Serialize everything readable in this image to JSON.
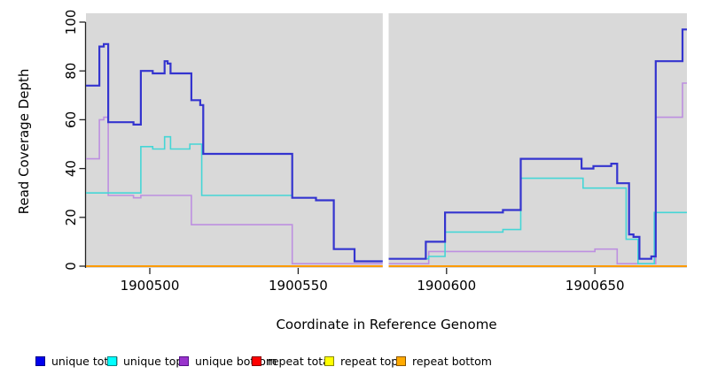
{
  "chart_data": {
    "type": "line",
    "title": "",
    "xlabel": "Coordinate in Reference Genome",
    "ylabel": "Read Coverage Depth",
    "xlim": [
      1900478.5,
      1900681
    ],
    "ylim": [
      0,
      100
    ],
    "x_ticks": [
      1900500,
      1900550,
      1900600,
      1900650
    ],
    "y_ticks": [
      0,
      20,
      40,
      60,
      80,
      100
    ],
    "grid": "off",
    "plot_background": "#d9d9d9",
    "axis_color": "#222222",
    "gap": {
      "x_start": 1900578.5,
      "x_end": 1900580.5,
      "color": "#ffffff"
    },
    "series": [
      {
        "name": "repeat total",
        "color": "#dd0000",
        "width": 1.5,
        "points": [
          [
            1900478.5,
            0
          ]
        ]
      },
      {
        "name": "repeat top",
        "color": "#eeee00",
        "width": 1.5,
        "points": [
          [
            1900478.5,
            0
          ]
        ]
      },
      {
        "name": "repeat bottom",
        "color": "#ff9800",
        "width": 1.8,
        "points": [
          [
            1900478.5,
            0
          ]
        ]
      },
      {
        "name": "unique bottom",
        "color": "#bd8fe0",
        "width": 1.6,
        "points": [
          [
            1900478.5,
            44
          ],
          [
            1900483,
            60
          ],
          [
            1900484.5,
            61
          ],
          [
            1900486,
            29
          ],
          [
            1900494.5,
            28
          ],
          [
            1900497,
            29
          ],
          [
            1900514,
            17
          ],
          [
            1900548,
            1
          ],
          [
            1900594,
            6
          ],
          [
            1900650,
            7
          ],
          [
            1900657.5,
            1
          ],
          [
            1900670.5,
            61
          ],
          [
            1900679.5,
            75
          ]
        ]
      },
      {
        "name": "unique top",
        "color": "#45d6d6",
        "width": 1.6,
        "points": [
          [
            1900478.5,
            30
          ],
          [
            1900497,
            49
          ],
          [
            1900501,
            48
          ],
          [
            1900505,
            53
          ],
          [
            1900507,
            48
          ],
          [
            1900513.5,
            50
          ],
          [
            1900517.5,
            29
          ],
          [
            1900548,
            28
          ],
          [
            1900556,
            27
          ],
          [
            1900562,
            7
          ],
          [
            1900569,
            2
          ],
          [
            1900579.5,
            3
          ],
          [
            1900594,
            4
          ],
          [
            1900599.5,
            14
          ],
          [
            1900619,
            15
          ],
          [
            1900625,
            36
          ],
          [
            1900646,
            32
          ],
          [
            1900660.5,
            11
          ],
          [
            1900664.5,
            1
          ],
          [
            1900670,
            22
          ]
        ]
      },
      {
        "name": "unique total",
        "color": "#3434cf",
        "width": 2.2,
        "points": [
          [
            1900478.5,
            74
          ],
          [
            1900483,
            90
          ],
          [
            1900484.5,
            91
          ],
          [
            1900486,
            59
          ],
          [
            1900494.5,
            58
          ],
          [
            1900497,
            80
          ],
          [
            1900501,
            79
          ],
          [
            1900505,
            84
          ],
          [
            1900506,
            83
          ],
          [
            1900507,
            79
          ],
          [
            1900514,
            68
          ],
          [
            1900517,
            66
          ],
          [
            1900518,
            46
          ],
          [
            1900548,
            28
          ],
          [
            1900556,
            27
          ],
          [
            1900562,
            7
          ],
          [
            1900569,
            2
          ],
          [
            1900579.5,
            3
          ],
          [
            1900593,
            10
          ],
          [
            1900599.5,
            22
          ],
          [
            1900619,
            23
          ],
          [
            1900625,
            44
          ],
          [
            1900645.5,
            40
          ],
          [
            1900649.5,
            41
          ],
          [
            1900655.5,
            42
          ],
          [
            1900657.5,
            34
          ],
          [
            1900661.5,
            13
          ],
          [
            1900663,
            12
          ],
          [
            1900665,
            3
          ],
          [
            1900669,
            4
          ],
          [
            1900670.5,
            84
          ],
          [
            1900679.5,
            97
          ]
        ]
      }
    ],
    "legend": {
      "position": "bottom",
      "items": [
        {
          "label": "unique total",
          "color": "#0000ee",
          "border": "#000088"
        },
        {
          "label": "unique top",
          "color": "#00ffff",
          "border": "#008888"
        },
        {
          "label": "unique bottom",
          "color": "#9933cc",
          "border": "#551188"
        },
        {
          "label": "repeat total",
          "color": "#ff0000",
          "border": "#880000"
        },
        {
          "label": "repeat top",
          "color": "#ffff00",
          "border": "#888800"
        },
        {
          "label": "repeat bottom",
          "color": "#ffaa00",
          "border": "#885500"
        }
      ]
    }
  }
}
